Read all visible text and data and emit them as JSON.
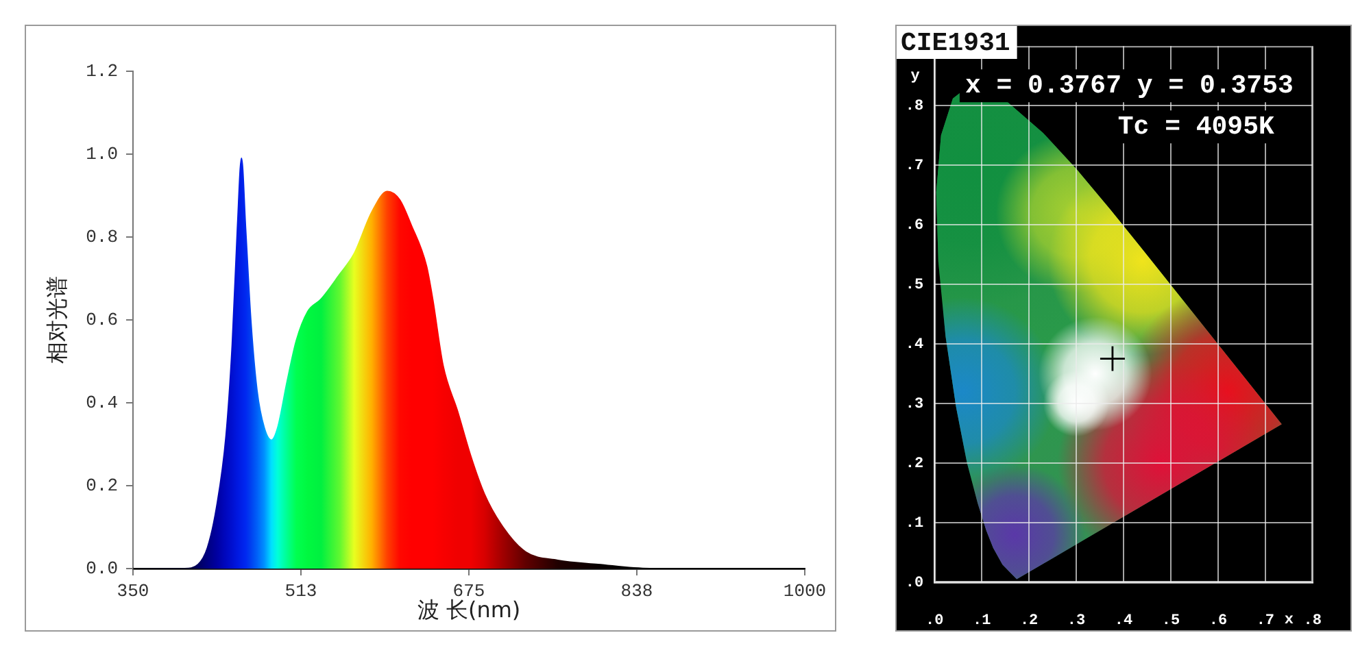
{
  "chart_data": [
    {
      "type": "area",
      "xlabel": "波 长(nm)",
      "ylabel": "相对光谱",
      "x": [
        350,
        400,
        413,
        422,
        431,
        440,
        446,
        451,
        455,
        459,
        464,
        470,
        477,
        484,
        490,
        499,
        508,
        519,
        532,
        550,
        564,
        581,
        596,
        608,
        619,
        634,
        640,
        650,
        664,
        677,
        690,
        708,
        730,
        761,
        800,
        850,
        1000
      ],
      "values": [
        0,
        0,
        0.01,
        0.05,
        0.15,
        0.32,
        0.54,
        0.82,
        0.99,
        0.82,
        0.6,
        0.43,
        0.34,
        0.31,
        0.34,
        0.45,
        0.55,
        0.62,
        0.65,
        0.71,
        0.76,
        0.86,
        0.91,
        0.89,
        0.83,
        0.73,
        0.65,
        0.49,
        0.38,
        0.27,
        0.18,
        0.1,
        0.04,
        0.02,
        0.01,
        0,
        0
      ],
      "colors": [
        "#000000",
        "#000020",
        "#000060",
        "#000080",
        "#0000a0",
        "#0008c0",
        "#0010d0",
        "#0018e0",
        "#0020e8",
        "#0028f0",
        "#0040f0",
        "#0060f8",
        "#0090ff",
        "#00e0ff",
        "#00ffd8",
        "#00ff90",
        "#00ff50",
        "#00f840",
        "#00f040",
        "#60f830",
        "#e8ff20",
        "#ffb000",
        "#ff4000",
        "#ff0800",
        "#ff0000",
        "#ff0000",
        "#ff0000",
        "#f80000",
        "#f00000",
        "#f00000",
        "#d80000",
        "#a00000",
        "#600000",
        "#200000",
        "#080000",
        "#000000",
        "#000000"
      ],
      "xlim": [
        350,
        1000
      ],
      "ylim": [
        0,
        1.2
      ],
      "xticks": [
        350,
        {
          "value": 512.5,
          "label": "513"
        },
        675,
        {
          "value": 837.5,
          "label": "838"
        },
        1000
      ],
      "yticks": [
        {
          "value": 0,
          "label": "0.0"
        },
        0.2,
        0.4,
        0.6,
        0.8,
        {
          "value": 1,
          "label": "1.0"
        },
        1.2
      ]
    },
    {
      "type": "scatter",
      "title": "CIE1931",
      "xlabel": "x",
      "ylabel": "y",
      "x": [
        0.3767
      ],
      "values": [
        0.3753
      ],
      "color": "#000000",
      "marker": "cross",
      "xlim": [
        0,
        0.8
      ],
      "ylim": [
        0,
        0.9
      ],
      "xticks": [
        {
          "value": 0,
          "label": ".0"
        },
        {
          "value": 0.1,
          "label": ".1"
        },
        {
          "value": 0.2,
          "label": ".2"
        },
        {
          "value": 0.3,
          "label": ".3"
        },
        {
          "value": 0.4,
          "label": ".4"
        },
        {
          "value": 0.5,
          "label": ".5"
        },
        {
          "value": 0.6,
          "label": ".6"
        },
        {
          "value": 0.7,
          "label": ".7"
        },
        {
          "value": 0.8,
          "label": ".8"
        }
      ],
      "yticks": [
        {
          "value": 0,
          "label": ".0"
        },
        {
          "value": 0.1,
          "label": ".1"
        },
        {
          "value": 0.2,
          "label": ".2"
        },
        {
          "value": 0.3,
          "label": ".3"
        },
        {
          "value": 0.4,
          "label": ".4"
        },
        {
          "value": 0.5,
          "label": ".5"
        },
        {
          "value": 0.6,
          "label": ".6"
        },
        {
          "value": 0.7,
          "label": ".7"
        },
        {
          "value": 0.8,
          "label": ".8"
        }
      ],
      "grid": true,
      "annotations": [
        "x = 0.3767 y = 0.3753",
        "Tc = 4095K"
      ]
    }
  ]
}
